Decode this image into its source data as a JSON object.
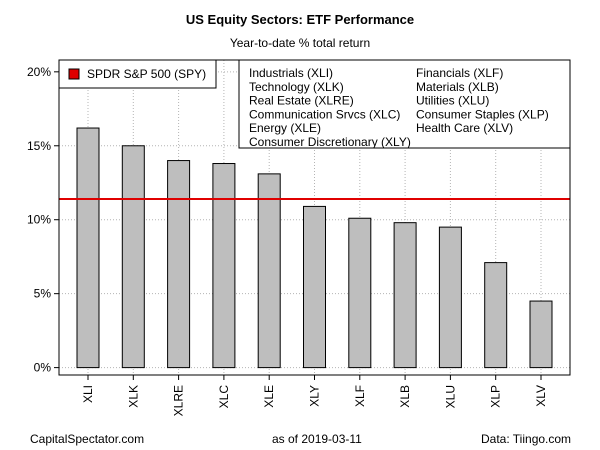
{
  "title": "US Equity Sectors: ETF Performance",
  "subtitle": "Year-to-date % total return",
  "footer": {
    "left": "CapitalSpectator.com",
    "center": "as of   2019-03-11",
    "right": "Data: Tiingo.com"
  },
  "chart_data": {
    "type": "bar",
    "categories": [
      "XLI",
      "XLK",
      "XLRE",
      "XLC",
      "XLE",
      "XLY",
      "XLF",
      "XLB",
      "XLU",
      "XLP",
      "XLV"
    ],
    "values": [
      16.2,
      15.0,
      14.0,
      13.8,
      13.1,
      10.9,
      10.1,
      9.8,
      9.5,
      7.1,
      4.5
    ],
    "ylim": [
      -0.5,
      20.8
    ],
    "yticks": [
      0,
      5,
      10,
      15,
      20
    ],
    "ytick_labels": [
      "0%",
      "5%",
      "10%",
      "15%",
      "20%"
    ],
    "grid": true,
    "bar_color": "#bebebe",
    "benchmark": {
      "name": "SPDR S&P 500 (SPY)",
      "value": 11.4,
      "color": "#e00000"
    },
    "legend_placement": "top-left",
    "sector_key": [
      "Industrials (XLI)",
      "Technology (XLK)",
      "Real Estate (XLRE)",
      "Communication Srvcs (XLC)",
      "Energy (XLE)",
      "Consumer Discretionary (XLY)",
      "Financials (XLF)",
      "Materials (XLB)",
      "Utilities (XLU)",
      "Consumer Staples (XLP)",
      "Health Care (XLV)"
    ]
  }
}
